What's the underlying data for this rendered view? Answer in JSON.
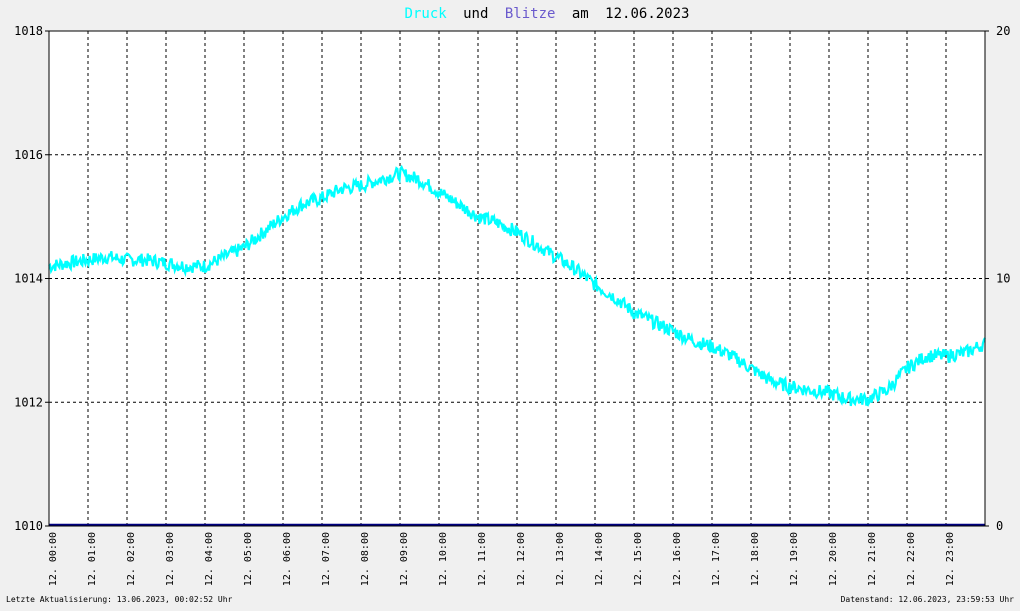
{
  "chart_data": {
    "type": "line",
    "title": {
      "series1": "Druck",
      "connector": "und",
      "series2": "Blitze",
      "date_prefix": "am",
      "date": "12.06.2023"
    },
    "colors": {
      "druck": "#00ffff",
      "blitze": "#000080",
      "background": "#f0f0f0",
      "plot_background": "#ffffff",
      "title_text": "#000000"
    },
    "y_left": {
      "label": "",
      "min": 1010,
      "max": 1018,
      "ticks": [
        "1018",
        "1016",
        "1014",
        "1012",
        "1010"
      ]
    },
    "y_right": {
      "label": "",
      "min": 0,
      "max": 20,
      "ticks": [
        "20",
        "10",
        "0"
      ]
    },
    "x_range": [
      0,
      24
    ],
    "x_ticks": [
      "12. 00:00",
      "12. 01:00",
      "12. 02:00",
      "12. 03:00",
      "12. 04:00",
      "12. 05:00",
      "12. 06:00",
      "12. 07:00",
      "12. 08:00",
      "12. 09:00",
      "12. 10:00",
      "12. 11:00",
      "12. 12:00",
      "12. 13:00",
      "12. 14:00",
      "12. 15:00",
      "12. 16:00",
      "12. 17:00",
      "12. 18:00",
      "12. 19:00",
      "12. 20:00",
      "12. 21:00",
      "12. 22:00",
      "12. 23:00"
    ],
    "grid": true,
    "series": [
      {
        "name": "Druck",
        "axis": "left",
        "x": [
          0,
          0.5,
          1,
          1.5,
          2,
          2.5,
          3,
          3.5,
          4,
          4.5,
          5,
          5.5,
          6,
          6.5,
          7,
          7.5,
          8,
          8.5,
          9,
          9.5,
          10,
          10.5,
          11,
          11.5,
          12,
          12.5,
          13,
          13.5,
          14,
          14.5,
          15,
          15.5,
          16,
          16.5,
          17,
          17.5,
          18,
          18.5,
          19,
          19.5,
          20,
          20.5,
          21,
          21.5,
          22,
          22.5,
          23,
          23.5,
          24
        ],
        "values": [
          1014.2,
          1014.25,
          1014.3,
          1014.35,
          1014.3,
          1014.3,
          1014.25,
          1014.2,
          1014.2,
          1014.35,
          1014.5,
          1014.75,
          1015.0,
          1015.2,
          1015.3,
          1015.45,
          1015.5,
          1015.6,
          1015.7,
          1015.6,
          1015.4,
          1015.2,
          1015.0,
          1014.9,
          1014.75,
          1014.55,
          1014.35,
          1014.15,
          1013.9,
          1013.7,
          1013.45,
          1013.3,
          1013.15,
          1013.0,
          1012.9,
          1012.75,
          1012.55,
          1012.35,
          1012.25,
          1012.2,
          1012.15,
          1012.05,
          1012.05,
          1012.2,
          1012.55,
          1012.75,
          1012.75,
          1012.8,
          1012.95
        ]
      },
      {
        "name": "Blitze",
        "axis": "right",
        "x": [
          0,
          24
        ],
        "values": [
          0,
          0
        ]
      }
    ]
  },
  "footer": {
    "left": "Letzte Aktualisierung: 13.06.2023, 00:02:52 Uhr",
    "right": "Datenstand: 12.06.2023, 23:59:53 Uhr"
  }
}
